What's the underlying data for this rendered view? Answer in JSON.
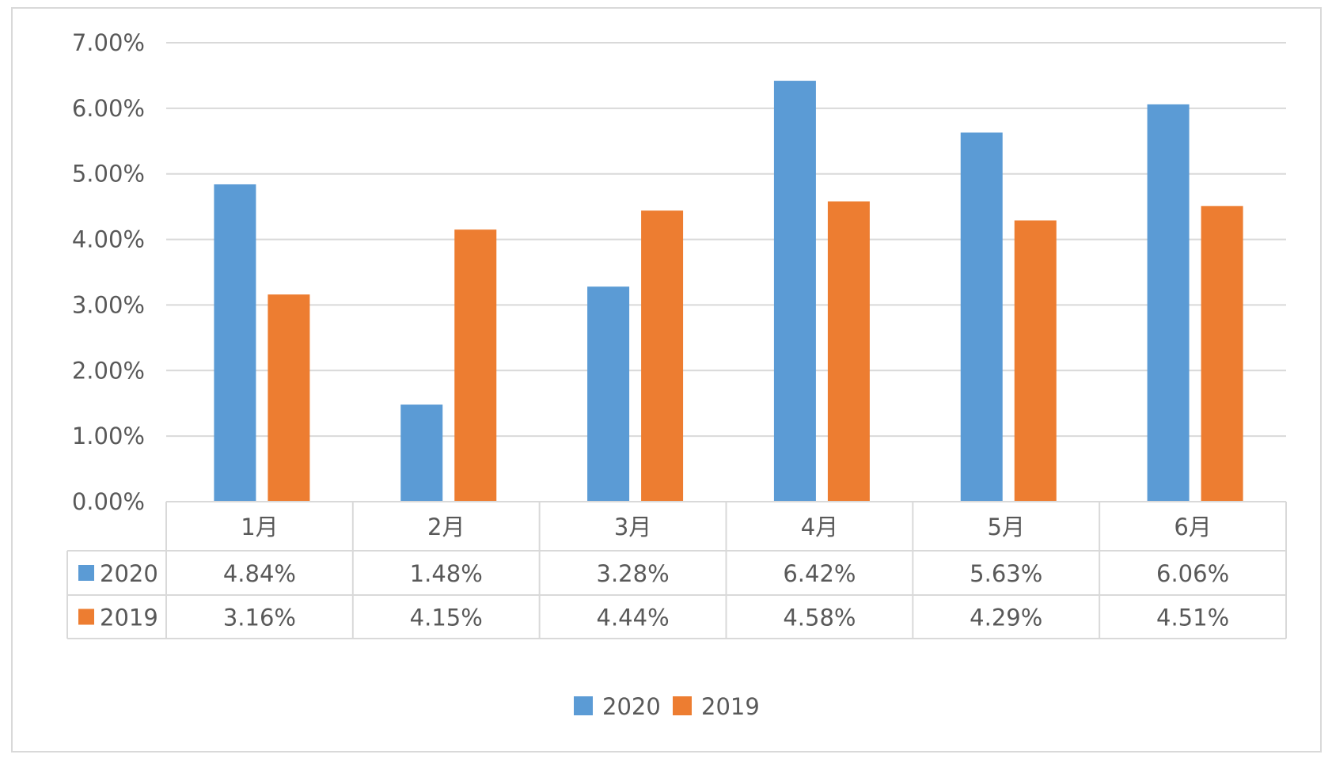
{
  "chart_data": {
    "type": "bar",
    "categories": [
      "1月",
      "2月",
      "3月",
      "4月",
      "5月",
      "6月"
    ],
    "series": [
      {
        "name": "2020",
        "values": [
          4.84,
          1.48,
          3.28,
          6.42,
          5.63,
          6.06
        ],
        "labels": [
          "4.84%",
          "1.48%",
          "3.28%",
          "6.42%",
          "5.63%",
          "6.06%"
        ],
        "color": "#5b9bd5"
      },
      {
        "name": "2019",
        "values": [
          3.16,
          4.15,
          4.44,
          4.58,
          4.29,
          4.51
        ],
        "labels": [
          "3.16%",
          "4.15%",
          "4.44%",
          "4.58%",
          "4.29%",
          "4.51%"
        ],
        "color": "#ed7d31"
      }
    ],
    "ylim": [
      0,
      7
    ],
    "yticks": [
      "0.00%",
      "1.00%",
      "2.00%",
      "3.00%",
      "4.00%",
      "5.00%",
      "6.00%",
      "7.00%"
    ],
    "grid": true,
    "data_table": true,
    "legend": "bottom-center",
    "gridline_color": "#d9d9d9",
    "text_color": "#595959"
  }
}
